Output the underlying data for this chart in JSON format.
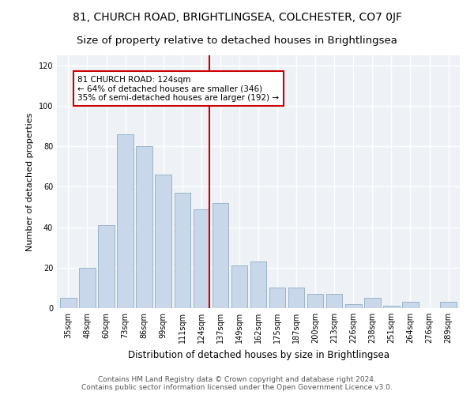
{
  "title": "81, CHURCH ROAD, BRIGHTLINGSEA, COLCHESTER, CO7 0JF",
  "subtitle": "Size of property relative to detached houses in Brightlingsea",
  "xlabel": "Distribution of detached houses by size in Brightlingsea",
  "ylabel": "Number of detached properties",
  "bar_labels": [
    "35sqm",
    "48sqm",
    "60sqm",
    "73sqm",
    "86sqm",
    "99sqm",
    "111sqm",
    "124sqm",
    "137sqm",
    "149sqm",
    "162sqm",
    "175sqm",
    "187sqm",
    "200sqm",
    "213sqm",
    "226sqm",
    "238sqm",
    "251sqm",
    "264sqm",
    "276sqm",
    "289sqm"
  ],
  "bar_values": [
    5,
    20,
    41,
    86,
    80,
    66,
    57,
    49,
    52,
    21,
    23,
    10,
    10,
    7,
    7,
    2,
    5,
    1,
    3,
    0,
    3
  ],
  "bar_color": "#c8d8ea",
  "bar_edge_color": "#9ab4c8",
  "vline_x": 7.425,
  "vline_color": "#cc0000",
  "annotation_title": "81 CHURCH ROAD: 124sqm",
  "annotation_line1": "← 64% of detached houses are smaller (346)",
  "annotation_line2": "35% of semi-detached houses are larger (192) →",
  "annotation_box_color": "white",
  "annotation_box_edge": "#cc0000",
  "ylim": [
    0,
    125
  ],
  "yticks": [
    0,
    20,
    40,
    60,
    80,
    100,
    120
  ],
  "footer_line1": "Contains HM Land Registry data © Crown copyright and database right 2024.",
  "footer_line2": "Contains public sector information licensed under the Open Government Licence v3.0.",
  "bg_color": "#eef2f7",
  "grid_color": "white",
  "title_fontsize": 10,
  "subtitle_fontsize": 9.5,
  "xlabel_fontsize": 8.5,
  "ylabel_fontsize": 8,
  "tick_fontsize": 7,
  "footer_fontsize": 6.5,
  "annotation_fontsize": 7.5
}
